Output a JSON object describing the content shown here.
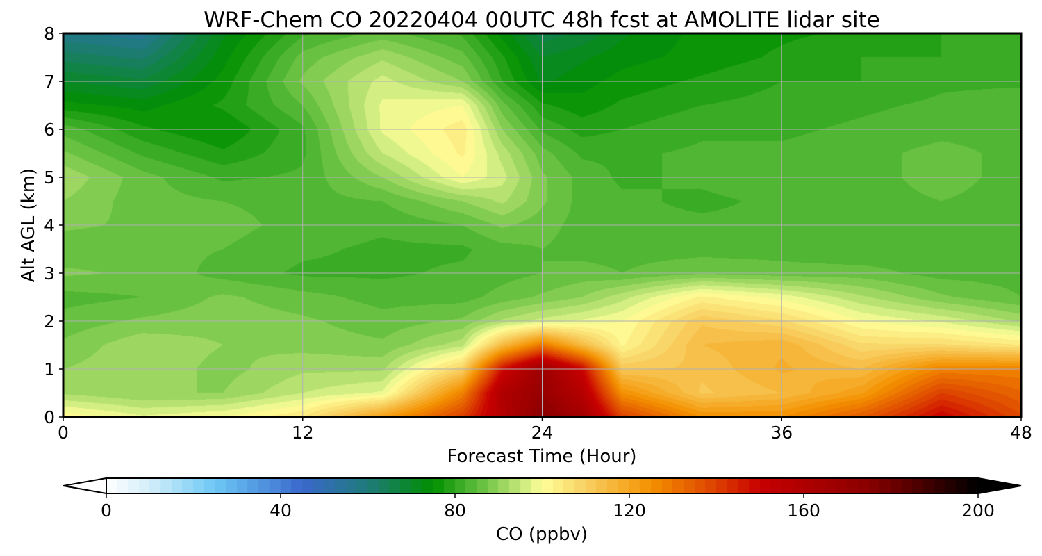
{
  "chart_data": {
    "type": "heatmap",
    "title": "WRF-Chem CO  20220404 00UTC 48h fcst at AMOLITE lidar site",
    "xlabel": "Forecast Time (Hour)",
    "ylabel": "Alt AGL (km)",
    "xlim": [
      0,
      48
    ],
    "ylim": [
      0,
      8
    ],
    "xticks": [
      0,
      12,
      24,
      36,
      48
    ],
    "yticks": [
      0,
      1,
      2,
      3,
      4,
      5,
      6,
      7,
      8
    ],
    "grid": true,
    "x": [
      0,
      4,
      8,
      12,
      16,
      20,
      22,
      24,
      26,
      28,
      32,
      36,
      40,
      44,
      48
    ],
    "y": [
      0,
      0.5,
      1,
      1.5,
      2,
      2.5,
      3,
      3.5,
      4,
      4.5,
      5,
      5.5,
      6,
      6.5,
      7,
      7.5,
      8
    ],
    "z": [
      [
        102,
        98,
        100,
        105,
        122,
        140,
        158,
        175,
        165,
        140,
        125,
        125,
        135,
        150,
        138
      ],
      [
        92,
        90,
        90,
        95,
        98,
        128,
        160,
        170,
        158,
        125,
        112,
        115,
        122,
        140,
        133
      ],
      [
        90,
        92,
        89,
        92,
        92,
        110,
        148,
        168,
        150,
        112,
        113,
        118,
        115,
        128,
        128
      ],
      [
        88,
        92,
        90,
        89,
        88,
        94,
        115,
        130,
        115,
        102,
        115,
        117,
        108,
        108,
        105
      ],
      [
        86,
        88,
        89,
        88,
        86,
        88,
        93,
        96,
        98,
        100,
        112,
        108,
        100,
        97,
        92
      ],
      [
        84,
        85,
        88,
        86,
        84,
        84,
        86,
        88,
        90,
        94,
        103,
        99,
        93,
        88,
        85
      ],
      [
        88,
        87,
        84,
        82,
        82,
        83,
        84,
        85,
        86,
        85,
        87,
        86,
        86,
        84,
        84
      ],
      [
        86,
        86,
        85,
        83,
        82,
        82,
        84,
        85,
        84,
        84,
        84,
        84,
        83,
        84,
        84
      ],
      [
        88,
        87,
        86,
        84,
        83,
        85,
        88,
        86,
        84,
        83,
        83,
        83,
        83,
        84,
        84
      ],
      [
        90,
        86,
        85,
        84,
        85,
        90,
        93,
        88,
        84,
        83,
        82,
        83,
        84,
        85,
        84
      ],
      [
        92,
        86,
        82,
        83,
        90,
        100,
        96,
        88,
        84,
        82,
        83,
        84,
        84,
        86,
        84
      ],
      [
        88,
        82,
        78,
        82,
        95,
        103,
        94,
        86,
        82,
        82,
        83,
        83,
        84,
        86,
        84
      ],
      [
        84,
        78,
        75,
        82,
        98,
        104,
        90,
        82,
        79,
        80,
        82,
        82,
        83,
        84,
        84
      ],
      [
        76,
        74,
        78,
        85,
        98,
        100,
        86,
        78,
        76,
        78,
        80,
        81,
        82,
        83,
        84
      ],
      [
        70,
        68,
        76,
        88,
        96,
        90,
        80,
        72,
        74,
        76,
        78,
        80,
        80,
        82,
        82
      ],
      [
        64,
        62,
        74,
        86,
        92,
        86,
        78,
        70,
        72,
        74,
        76,
        78,
        80,
        80,
        82
      ],
      [
        58,
        56,
        72,
        82,
        86,
        82,
        74,
        66,
        68,
        72,
        76,
        77,
        78,
        80,
        80
      ]
    ],
    "colorbar": {
      "label": "CO  (ppbv)",
      "ticks": [
        0,
        40,
        80,
        120,
        160,
        200
      ],
      "range": [
        0,
        200
      ],
      "extend": "both",
      "stops": [
        {
          "v": 0,
          "c": "#ffffff"
        },
        {
          "v": 10,
          "c": "#d4eefa"
        },
        {
          "v": 25,
          "c": "#6cc8f4"
        },
        {
          "v": 45,
          "c": "#3a68cc"
        },
        {
          "v": 60,
          "c": "#1f7a7a"
        },
        {
          "v": 75,
          "c": "#008f00"
        },
        {
          "v": 85,
          "c": "#5cbb3a"
        },
        {
          "v": 95,
          "c": "#c4e87a"
        },
        {
          "v": 100,
          "c": "#ffff99"
        },
        {
          "v": 110,
          "c": "#f8d062"
        },
        {
          "v": 125,
          "c": "#f49100"
        },
        {
          "v": 140,
          "c": "#dc4000"
        },
        {
          "v": 150,
          "c": "#c80000"
        },
        {
          "v": 175,
          "c": "#8a0000"
        },
        {
          "v": 200,
          "c": "#000000"
        }
      ]
    }
  }
}
